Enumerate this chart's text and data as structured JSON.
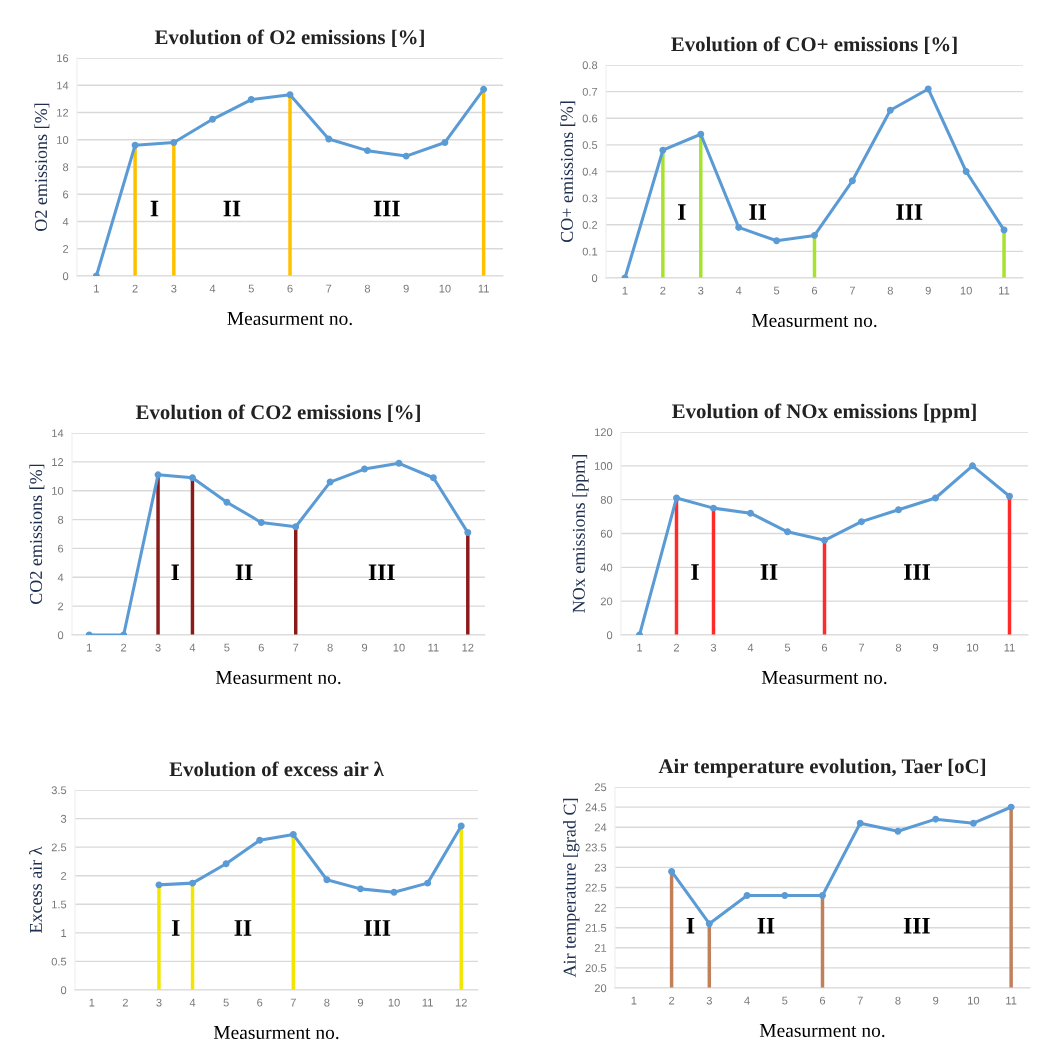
{
  "chart_data": [
    {
      "type": "line",
      "title": "Evolution of O2 emissions [%]",
      "xlabel": "Measurment no.",
      "ylabel": "O2 emissions [%]",
      "x": [
        1,
        2,
        3,
        4,
        5,
        6,
        7,
        8,
        9,
        10,
        11
      ],
      "xlim": [
        0.5,
        11.5
      ],
      "xticks": [
        1,
        2,
        3,
        4,
        5,
        6,
        7,
        8,
        9,
        10,
        11
      ],
      "ylim": [
        0,
        16
      ],
      "yticks": [
        0,
        2,
        4,
        6,
        8,
        10,
        12,
        14,
        16
      ],
      "grid": "y",
      "marker": "circle",
      "line_style": "solid",
      "series": [
        {
          "color": "#5b9bd5",
          "values": [
            0,
            9.6,
            9.8,
            11.5,
            12.95,
            13.3,
            10.05,
            9.2,
            8.8,
            9.8,
            13.7
          ]
        }
      ],
      "ref_lines": [
        {
          "axis": "x",
          "value": 2,
          "color": "#ffc000"
        },
        {
          "axis": "x",
          "value": 3,
          "color": "#ffc000"
        },
        {
          "axis": "x",
          "value": 6,
          "color": "#ffc000"
        },
        {
          "axis": "x",
          "value": 11,
          "color": "#ffc000"
        }
      ],
      "annotations": [
        "I",
        "II",
        "III"
      ]
    },
    {
      "type": "line",
      "title": "Evolution of CO+ emissions [%]",
      "xlabel": "Measurment no.",
      "ylabel": "CO+ emissions [%]",
      "x": [
        1,
        2,
        3,
        4,
        5,
        6,
        7,
        8,
        9,
        10,
        11
      ],
      "xlim": [
        0.5,
        11.5
      ],
      "xticks": [
        1,
        2,
        3,
        4,
        5,
        6,
        7,
        8,
        9,
        10,
        11
      ],
      "ylim": [
        0,
        0.8
      ],
      "yticks": [
        0,
        0.1,
        0.2,
        0.3,
        0.4,
        0.5,
        0.6,
        0.7,
        0.8
      ],
      "grid": "y",
      "marker": "circle",
      "line_style": "solid",
      "series": [
        {
          "color": "#5b9bd5",
          "values": [
            0,
            0.48,
            0.54,
            0.19,
            0.14,
            0.16,
            0.365,
            0.63,
            0.71,
            0.4,
            0.18
          ]
        }
      ],
      "ref_lines": [
        {
          "axis": "x",
          "value": 2,
          "color": "#a6e22e"
        },
        {
          "axis": "x",
          "value": 3,
          "color": "#a6e22e"
        },
        {
          "axis": "x",
          "value": 6,
          "color": "#a6e22e"
        },
        {
          "axis": "x",
          "value": 11,
          "color": "#a6e22e"
        }
      ],
      "annotations": [
        "I",
        "II",
        "III"
      ]
    },
    {
      "type": "line",
      "title": "Evolution of CO2 emissions [%]",
      "xlabel": "Measurment no.",
      "ylabel": "CO2 emissions [%]",
      "x": [
        1,
        2,
        3,
        4,
        5,
        6,
        7,
        8,
        9,
        10,
        11,
        12
      ],
      "xlim": [
        0.5,
        12.5
      ],
      "xticks": [
        1,
        2,
        3,
        4,
        5,
        6,
        7,
        8,
        9,
        10,
        11,
        12
      ],
      "ylim": [
        0,
        14
      ],
      "yticks": [
        0,
        2,
        4,
        6,
        8,
        10,
        12,
        14
      ],
      "grid": "y",
      "marker": "circle",
      "line_style": "solid",
      "series": [
        {
          "color": "#5b9bd5",
          "values": [
            0,
            0,
            11.1,
            10.9,
            9.2,
            7.8,
            7.5,
            10.6,
            11.5,
            11.9,
            10.9,
            7.1
          ]
        }
      ],
      "ref_lines": [
        {
          "axis": "x",
          "value": 3,
          "color": "#8b1a1a"
        },
        {
          "axis": "x",
          "value": 4,
          "color": "#8b1a1a"
        },
        {
          "axis": "x",
          "value": 7,
          "color": "#8b1a1a"
        },
        {
          "axis": "x",
          "value": 12,
          "color": "#8b1a1a"
        }
      ],
      "annotations": [
        "I",
        "II",
        "III"
      ]
    },
    {
      "type": "line",
      "title": "Evolution of NOx emissions [ppm]",
      "xlabel": "Measurment no.",
      "ylabel": "NOx emissions [ppm]",
      "x": [
        1,
        2,
        3,
        4,
        5,
        6,
        7,
        8,
        9,
        10,
        11
      ],
      "xlim": [
        0.5,
        11.5
      ],
      "xticks": [
        1,
        2,
        3,
        4,
        5,
        6,
        7,
        8,
        9,
        10,
        11
      ],
      "ylim": [
        0,
        120
      ],
      "yticks": [
        0,
        20,
        40,
        60,
        80,
        100,
        120
      ],
      "grid": "y",
      "marker": "circle",
      "line_style": "solid",
      "series": [
        {
          "color": "#5b9bd5",
          "values": [
            0,
            81,
            75,
            72,
            61,
            56,
            67,
            74,
            81,
            100,
            82
          ]
        }
      ],
      "ref_lines": [
        {
          "axis": "x",
          "value": 2,
          "color": "#ff2a2a"
        },
        {
          "axis": "x",
          "value": 3,
          "color": "#ff2a2a"
        },
        {
          "axis": "x",
          "value": 6,
          "color": "#ff2a2a"
        },
        {
          "axis": "x",
          "value": 11,
          "color": "#ff2a2a"
        }
      ],
      "annotations": [
        "I",
        "II",
        "III"
      ]
    },
    {
      "type": "line",
      "title": "Evolution of excess air λ",
      "xlabel": "Measurment no.",
      "ylabel": "Excess air λ",
      "x": [
        3,
        4,
        5,
        6,
        7,
        8,
        9,
        10,
        11,
        12
      ],
      "xlim": [
        0.5,
        12.5
      ],
      "xticks": [
        1,
        2,
        3,
        4,
        5,
        6,
        7,
        8,
        9,
        10,
        11,
        12
      ],
      "ylim": [
        0,
        3.5
      ],
      "yticks": [
        0,
        0.5,
        1,
        1.5,
        2,
        2.5,
        3,
        3.5
      ],
      "grid": "y",
      "marker": "circle",
      "line_style": "solid",
      "series": [
        {
          "color": "#5b9bd5",
          "values": [
            1.84,
            1.87,
            2.21,
            2.62,
            2.72,
            1.93,
            1.77,
            1.71,
            1.87,
            2.87
          ]
        }
      ],
      "ref_lines": [
        {
          "axis": "x",
          "value": 3,
          "color": "#f2e600"
        },
        {
          "axis": "x",
          "value": 4,
          "color": "#f2e600"
        },
        {
          "axis": "x",
          "value": 7,
          "color": "#f2e600"
        },
        {
          "axis": "x",
          "value": 12,
          "color": "#f2e600"
        }
      ],
      "annotations": [
        "I",
        "II",
        "III"
      ]
    },
    {
      "type": "line",
      "title": "Air temperature evolution, Taer [oC]",
      "xlabel": "Measurment no.",
      "ylabel": "Air temperature [grad C]",
      "x": [
        2,
        3,
        4,
        5,
        6,
        7,
        8,
        9,
        10,
        11
      ],
      "xlim": [
        0.5,
        11.5
      ],
      "xticks": [
        1,
        2,
        3,
        4,
        5,
        6,
        7,
        8,
        9,
        10,
        11
      ],
      "ylim": [
        20,
        25
      ],
      "yticks": [
        20,
        20.5,
        21,
        21.5,
        22,
        22.5,
        23,
        23.5,
        24,
        24.5,
        25
      ],
      "grid": "y",
      "marker": "circle",
      "line_style": "solid",
      "series": [
        {
          "color": "#5b9bd5",
          "values": [
            22.9,
            21.6,
            22.3,
            22.3,
            22.3,
            24.1,
            23.9,
            24.2,
            24.1,
            24.5
          ]
        }
      ],
      "ref_lines": [
        {
          "axis": "x",
          "value": 2,
          "color": "#c0805a"
        },
        {
          "axis": "x",
          "value": 3,
          "color": "#c0805a"
        },
        {
          "axis": "x",
          "value": 6,
          "color": "#c0805a"
        },
        {
          "axis": "x",
          "value": 11,
          "color": "#c0805a"
        }
      ],
      "annotations": [
        "I",
        "II",
        "III"
      ]
    }
  ]
}
